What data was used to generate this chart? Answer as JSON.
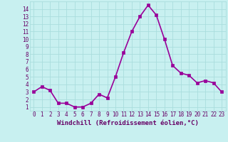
{
  "x": [
    0,
    1,
    2,
    3,
    4,
    5,
    6,
    7,
    8,
    9,
    10,
    11,
    12,
    13,
    14,
    15,
    16,
    17,
    18,
    19,
    20,
    21,
    22,
    23
  ],
  "y": [
    3.0,
    3.7,
    3.2,
    1.5,
    1.5,
    1.0,
    1.0,
    1.5,
    2.7,
    2.2,
    5.0,
    8.2,
    11.0,
    13.0,
    14.5,
    13.2,
    10.0,
    6.5,
    5.5,
    5.2,
    4.2,
    4.5,
    4.2,
    3.0
  ],
  "line_color": "#990099",
  "marker_color": "#990099",
  "bg_color": "#c8f0f0",
  "grid_color": "#aadddd",
  "xlabel": "Windchill (Refroidissement éolien,°C)",
  "xlabel_color": "#660066",
  "tick_color": "#660066",
  "ylim": [
    0.5,
    15.0
  ],
  "xlim": [
    -0.5,
    23.5
  ],
  "yticks": [
    1,
    2,
    3,
    4,
    5,
    6,
    7,
    8,
    9,
    10,
    11,
    12,
    13,
    14
  ],
  "xticks": [
    0,
    1,
    2,
    3,
    4,
    5,
    6,
    7,
    8,
    9,
    10,
    11,
    12,
    13,
    14,
    15,
    16,
    17,
    18,
    19,
    20,
    21,
    22,
    23
  ],
  "marker_size": 2.5,
  "line_width": 1.2,
  "tick_fontsize": 5.5,
  "xlabel_fontsize": 6.5
}
